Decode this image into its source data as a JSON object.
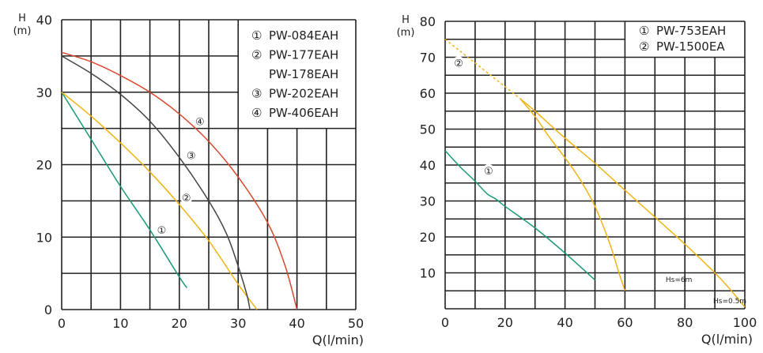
{
  "chart_data": [
    {
      "type": "line",
      "ylabel": "H",
      "yunit": "(m)",
      "xlabel": "Q(l/min)",
      "xlim": [
        0,
        50
      ],
      "ylim": [
        0,
        40
      ],
      "xticks": [
        "0",
        "10",
        "20",
        "30",
        "40",
        "50"
      ],
      "yticks": [
        "0",
        "10",
        "20",
        "30",
        "40"
      ],
      "grid": true,
      "legend_position": "top-right",
      "legend": [
        {
          "mark": "①",
          "text": "PW-084EAH"
        },
        {
          "mark": "②",
          "text": "PW-177EAH"
        },
        {
          "mark": "",
          "text": "PW-178EAH"
        },
        {
          "mark": "③",
          "text": "PW-202EAH"
        },
        {
          "mark": "④",
          "text": "PW-406EAH"
        }
      ],
      "series": [
        {
          "name": "①",
          "color": "#1a9a78",
          "label_at": [
            17,
            11
          ],
          "points": [
            [
              0,
              30
            ],
            [
              5,
              23.5
            ],
            [
              10,
              17
            ],
            [
              15,
              11
            ],
            [
              20,
              4.5
            ],
            [
              21.3,
              3
            ]
          ]
        },
        {
          "name": "②",
          "color": "#f0b414",
          "label_at": [
            21.2,
            15.5
          ],
          "points": [
            [
              0,
              30
            ],
            [
              5,
              26.7
            ],
            [
              10,
              23
            ],
            [
              15,
              19
            ],
            [
              20,
              14.5
            ],
            [
              25,
              9.5
            ],
            [
              30,
              3.5
            ],
            [
              33.2,
              0
            ]
          ]
        },
        {
          "name": "③",
          "color": "#444444",
          "label_at": [
            22,
            21.3
          ],
          "points": [
            [
              0,
              35
            ],
            [
              5,
              32.6
            ],
            [
              10,
              29.7
            ],
            [
              15,
              26
            ],
            [
              20,
              21
            ],
            [
              25,
              15
            ],
            [
              28,
              10.5
            ],
            [
              30,
              6
            ],
            [
              31.5,
              2
            ],
            [
              32,
              0
            ]
          ]
        },
        {
          "name": "④",
          "color": "#d9482e",
          "label_at": [
            23.5,
            26
          ],
          "points": [
            [
              0,
              35.5
            ],
            [
              5,
              34.2
            ],
            [
              10,
              32.3
            ],
            [
              15,
              30
            ],
            [
              20,
              27
            ],
            [
              25,
              23.2
            ],
            [
              30,
              18.3
            ],
            [
              35,
              12
            ],
            [
              38,
              6
            ],
            [
              40,
              0
            ]
          ]
        }
      ]
    },
    {
      "type": "line",
      "ylabel": "H",
      "yunit": "(m)",
      "xlabel": "Q(l/min)",
      "xlim": [
        0,
        100
      ],
      "ylim": [
        0,
        80
      ],
      "xticks": [
        "0",
        "20",
        "40",
        "60",
        "80",
        "100"
      ],
      "yticks": [
        "10",
        "20",
        "30",
        "40",
        "50",
        "60",
        "70",
        "80"
      ],
      "grid": true,
      "legend_position": "top-right",
      "legend": [
        {
          "mark": "①",
          "text": "PW-753EAH"
        },
        {
          "mark": "②",
          "text": "PW-1500EA"
        }
      ],
      "annotations": [
        {
          "text": "Hs=6m",
          "at": [
            78,
            7.5
          ]
        },
        {
          "text": "Hs=0.5m",
          "at": [
            95,
            1.5
          ]
        }
      ],
      "series": [
        {
          "name": "①",
          "color": "#1a9a78",
          "label_at": [
            14.5,
            38.5
          ],
          "points": [
            [
              0,
              44
            ],
            [
              5,
              39.5
            ],
            [
              10,
              35.5
            ],
            [
              14,
              32
            ],
            [
              17,
              30.5
            ],
            [
              20,
              28.5
            ],
            [
              30,
              22.5
            ],
            [
              40,
              15.5
            ],
            [
              50,
              8
            ]
          ]
        },
        {
          "name": "②",
          "color": "#f0b414",
          "dashed": true,
          "label_at": [
            4.5,
            68.5
          ],
          "points": [
            [
              0,
              75
            ],
            [
              25,
              58.5
            ]
          ]
        },
        {
          "name": "② Hs=6m",
          "color": "#f0b414",
          "points": [
            [
              25,
              58.5
            ],
            [
              30,
              53.5
            ],
            [
              35,
              47.5
            ],
            [
              40,
              42
            ],
            [
              45,
              36
            ],
            [
              50,
              28.5
            ],
            [
              55,
              18
            ],
            [
              58,
              10
            ],
            [
              60,
              5
            ]
          ]
        },
        {
          "name": "② Hs=0.5m",
          "color": "#f0b414",
          "points": [
            [
              25,
              58.5
            ],
            [
              30,
              55
            ],
            [
              40,
              47.5
            ],
            [
              50,
              40.5
            ],
            [
              60,
              33
            ],
            [
              70,
              25.5
            ],
            [
              80,
              18
            ],
            [
              90,
              10
            ],
            [
              95,
              5.5
            ],
            [
              100,
              0.5
            ]
          ]
        }
      ]
    }
  ]
}
